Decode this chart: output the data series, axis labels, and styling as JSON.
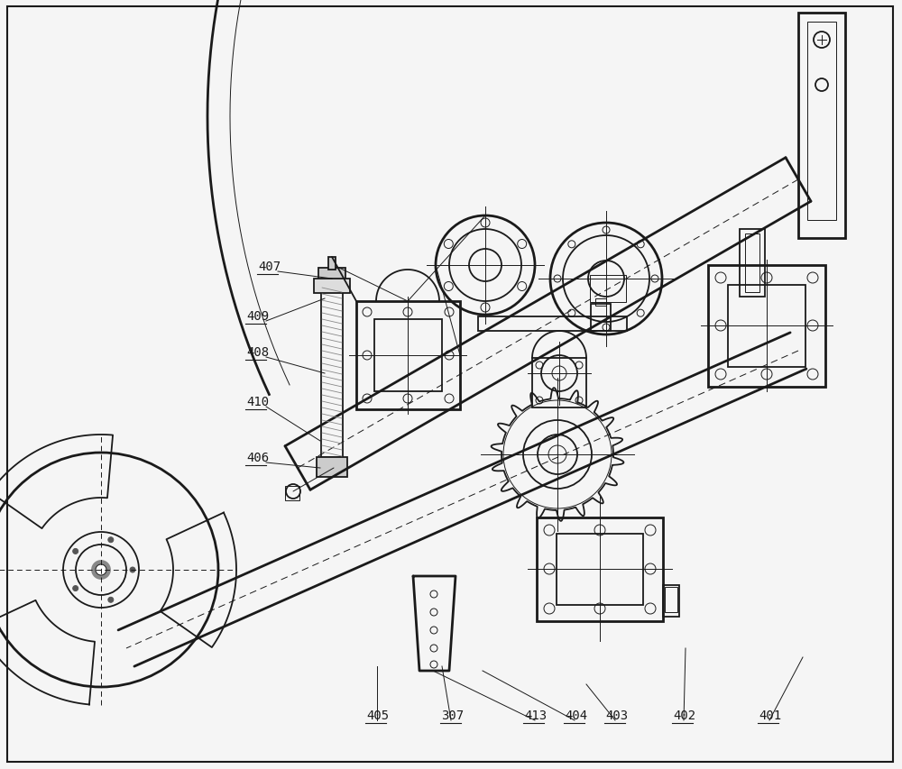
{
  "bg_color": "#f5f5f5",
  "line_color": "#1a1a1a",
  "lw_thin": 0.7,
  "lw_med": 1.3,
  "lw_thick": 2.0,
  "labels": [
    [
      "407",
      285,
      305
    ],
    [
      "409",
      272,
      360
    ],
    [
      "408",
      272,
      400
    ],
    [
      "410",
      272,
      455
    ],
    [
      "406",
      272,
      517
    ],
    [
      "405",
      405,
      803
    ],
    [
      "307",
      488,
      803
    ],
    [
      "413",
      580,
      803
    ],
    [
      "404",
      625,
      803
    ],
    [
      "403",
      670,
      803
    ],
    [
      "402",
      745,
      803
    ],
    [
      "401",
      840,
      803
    ]
  ]
}
